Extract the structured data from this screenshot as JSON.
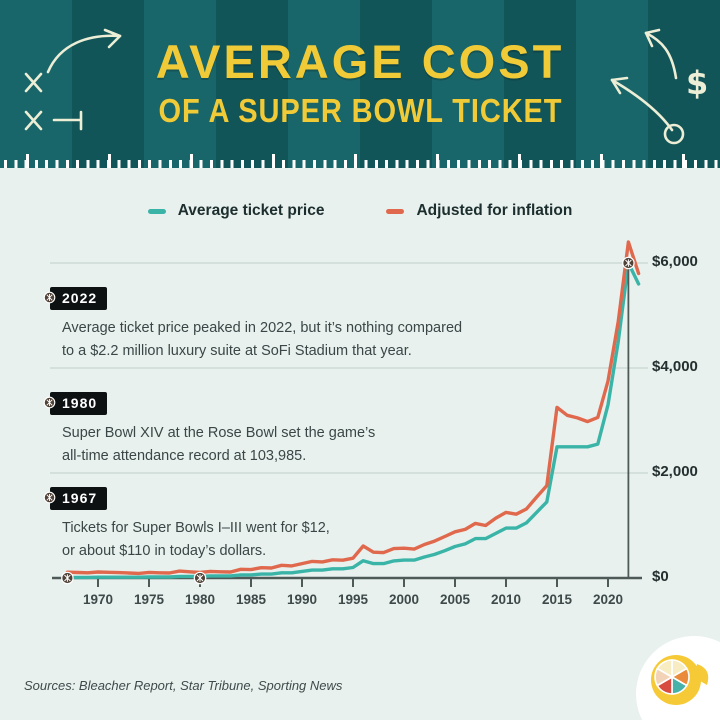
{
  "header": {
    "title_line1": "AVERAGE COST",
    "title_line2": "OF A SUPER BOWL TICKET"
  },
  "legend": {
    "items": [
      {
        "label": "Average ticket price",
        "color": "#3bb4a8"
      },
      {
        "label": "Adjusted for inflation",
        "color": "#e0694d"
      }
    ]
  },
  "annotations": [
    {
      "year": "2022",
      "text_line1": "Average ticket price peaked in 2022, but it’s nothing compared",
      "text_line2": "to a $2.2 million luxury suite at SoFi Stadium that year."
    },
    {
      "year": "1980",
      "text_line1": "Super Bowl XIV at the Rose Bowl set the game’s",
      "text_line2": "all-time attendance record at 103,985."
    },
    {
      "year": "1967",
      "text_line1": "Tickets for Super Bowls I–III went for $12,",
      "text_line2": "or about $110 in today’s dollars."
    }
  ],
  "chart_data": {
    "type": "line",
    "title": "Average Cost of a Super Bowl Ticket",
    "xlabel": "",
    "ylabel": "",
    "y_axis_side": "right",
    "legend_position": "top",
    "grid": "horizontal",
    "xlim": [
      1966,
      2024
    ],
    "ylim": [
      0,
      6800
    ],
    "x": [
      1967,
      1968,
      1969,
      1970,
      1971,
      1972,
      1973,
      1974,
      1975,
      1976,
      1977,
      1978,
      1979,
      1980,
      1981,
      1982,
      1983,
      1984,
      1985,
      1986,
      1987,
      1988,
      1989,
      1990,
      1991,
      1992,
      1993,
      1994,
      1995,
      1996,
      1997,
      1998,
      1999,
      2000,
      2001,
      2002,
      2003,
      2004,
      2005,
      2006,
      2007,
      2008,
      2009,
      2010,
      2011,
      2012,
      2013,
      2014,
      2015,
      2016,
      2017,
      2018,
      2019,
      2020,
      2021,
      2022,
      2023
    ],
    "series": [
      {
        "name": "Average ticket price",
        "color": "#3bb4a8",
        "values": [
          12,
          12,
          12,
          15,
          15,
          15,
          15,
          15,
          20,
          20,
          20,
          30,
          30,
          30,
          40,
          40,
          40,
          60,
          60,
          75,
          75,
          100,
          100,
          125,
          150,
          150,
          175,
          175,
          200,
          330,
          275,
          275,
          325,
          340,
          340,
          400,
          450,
          520,
          600,
          650,
          750,
          750,
          850,
          950,
          950,
          1050,
          1250,
          1450,
          2500,
          2500,
          2500,
          2500,
          2550,
          3300,
          4500,
          6000,
          5600
        ]
      },
      {
        "name": "Adjusted for inflation",
        "color": "#e0694d",
        "values": [
          110,
          105,
          100,
          115,
          108,
          102,
          96,
          88,
          106,
          100,
          95,
          132,
          118,
          105,
          126,
          119,
          115,
          166,
          160,
          196,
          190,
          242,
          231,
          274,
          316,
          306,
          347,
          339,
          377,
          610,
          492,
          484,
          560,
          567,
          551,
          638,
          702,
          790,
          880,
          925,
          1040,
          1000,
          1140,
          1250,
          1215,
          1315,
          1540,
          1760,
          3250,
          3100,
          3050,
          2980,
          3060,
          3750,
          4880,
          6400,
          5800
        ]
      }
    ],
    "x_tick_years": [
      1970,
      1975,
      1980,
      1985,
      1990,
      1995,
      2000,
      2005,
      2010,
      2015,
      2020
    ],
    "y_ticks": [
      {
        "value": 0,
        "label": "$0"
      },
      {
        "value": 2000,
        "label": "$2,000"
      },
      {
        "value": 4000,
        "label": "$4,000"
      },
      {
        "value": 6000,
        "label": "$6,000"
      }
    ],
    "markers": [
      {
        "year": 1967,
        "value": 0
      },
      {
        "year": 1980,
        "value": 0
      },
      {
        "year": 2022,
        "value": 6000
      }
    ]
  },
  "footer": {
    "sources": "Sources: Bleacher Report, Star Tribune, Sporting News"
  },
  "icons": {
    "marker": "football-icon",
    "logo": "lemon-pie-icon"
  },
  "colors": {
    "background": "#e8f1ee",
    "header_stripe_light": "#19666a",
    "header_stripe_dark": "#115558",
    "title_yellow": "#f1ca37",
    "doodle_cream": "#edeed6",
    "teal_line": "#3bb4a8",
    "orange_line": "#e0694d",
    "axis": "#4d5a58",
    "gridline": "#ccdad6",
    "chip_bg": "#0d1112",
    "text_dark": "#1c2e2d"
  }
}
